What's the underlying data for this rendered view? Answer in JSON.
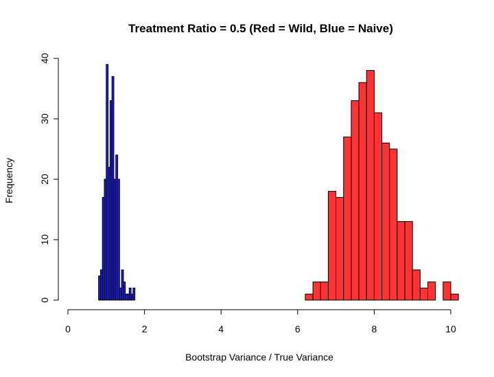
{
  "chart_data": {
    "type": "bar",
    "title": "Treatment Ratio = 0.5 (Red = Wild, Blue = Naive)",
    "xlabel": "Bootstrap Variance / True Variance",
    "ylabel": "Frequency",
    "xlim": [
      0,
      10.2
    ],
    "ylim": [
      0,
      40
    ],
    "x_ticks": [
      "0",
      "2",
      "4",
      "6",
      "8",
      "10"
    ],
    "y_ticks": [
      "0",
      "10",
      "20",
      "30",
      "40"
    ],
    "series": [
      {
        "name": "Naive",
        "color": "#1f1fdd",
        "bin_start": 0.8,
        "bin_width": 0.05,
        "counts": [
          4,
          5,
          17,
          20,
          39,
          22,
          33,
          37,
          20,
          24,
          20,
          2,
          5,
          3,
          1,
          1,
          2,
          1,
          2
        ]
      },
      {
        "name": "Wild",
        "color": "#ff3333",
        "bin_start": 6.2,
        "bin_width": 0.2,
        "counts": [
          1,
          3,
          3,
          18,
          17,
          27,
          33,
          36,
          38,
          31,
          26,
          25,
          13,
          13,
          5,
          2,
          3,
          0,
          3,
          1
        ]
      }
    ]
  }
}
